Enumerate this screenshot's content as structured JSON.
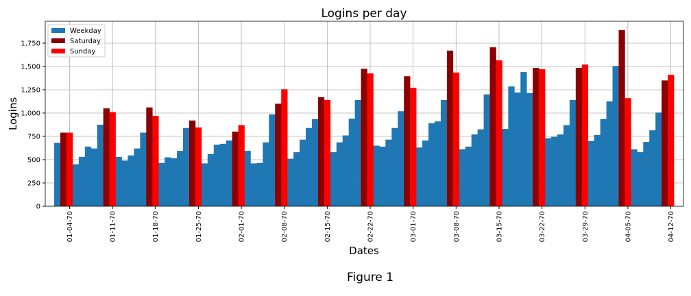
{
  "chart_data": {
    "type": "bar",
    "title": "Logins per day",
    "xlabel": "Dates",
    "ylabel": "Logins",
    "categories": [
      null,
      null,
      "01-04-70",
      null,
      null,
      null,
      null,
      null,
      null,
      "01-11-70",
      null,
      null,
      null,
      null,
      null,
      null,
      "01-18-70",
      null,
      null,
      null,
      null,
      null,
      null,
      "01-25-70",
      null,
      null,
      null,
      null,
      null,
      null,
      "02-01-70",
      null,
      null,
      null,
      null,
      null,
      null,
      "02-08-70",
      null,
      null,
      null,
      null,
      null,
      null,
      "02-15-70",
      null,
      null,
      null,
      null,
      null,
      null,
      "02-22-70",
      null,
      null,
      null,
      null,
      null,
      null,
      "03-01-70",
      null,
      null,
      null,
      null,
      null,
      null,
      "03-08-70",
      null,
      null,
      null,
      null,
      null,
      null,
      "03-15-70",
      null,
      null,
      null,
      null,
      null,
      null,
      "03-22-70",
      null,
      null,
      null,
      null,
      null,
      null,
      "03-29-70",
      null,
      null,
      null,
      null,
      null,
      null,
      "04-05-70",
      null,
      null,
      null,
      null,
      null,
      null,
      "04-12-70"
    ],
    "series": [
      {
        "name": "Weekday",
        "color": "#1f77b4",
        "values": [
          680,
          null,
          null,
          450,
          530,
          640,
          620,
          875,
          null,
          null,
          530,
          490,
          545,
          620,
          790,
          null,
          null,
          465,
          525,
          515,
          595,
          840,
          null,
          null,
          460,
          560,
          660,
          670,
          705,
          null,
          null,
          595,
          460,
          465,
          685,
          985,
          null,
          null,
          510,
          580,
          715,
          840,
          935,
          null,
          null,
          580,
          685,
          760,
          940,
          1140,
          null,
          null,
          650,
          640,
          715,
          840,
          1020,
          null,
          null,
          630,
          705,
          890,
          910,
          1140,
          null,
          null,
          610,
          640,
          770,
          825,
          1200,
          null,
          null,
          830,
          1285,
          1220,
          1440,
          1215,
          null,
          null,
          730,
          745,
          770,
          870,
          1140,
          null,
          null,
          700,
          765,
          935,
          1125,
          1505,
          null,
          null,
          610,
          580,
          690,
          815,
          1005,
          null,
          null
        ]
      },
      {
        "name": "Saturday",
        "color": "#8b0000",
        "values": [
          null,
          790,
          null,
          null,
          null,
          null,
          null,
          null,
          1050,
          null,
          null,
          null,
          null,
          null,
          null,
          1060,
          null,
          null,
          null,
          null,
          null,
          null,
          920,
          null,
          null,
          null,
          null,
          null,
          null,
          800,
          null,
          null,
          null,
          null,
          null,
          null,
          1100,
          null,
          null,
          null,
          null,
          null,
          null,
          1170,
          null,
          null,
          null,
          null,
          null,
          null,
          1475,
          null,
          null,
          null,
          null,
          null,
          null,
          1395,
          null,
          null,
          null,
          null,
          null,
          null,
          1670,
          null,
          null,
          null,
          null,
          null,
          null,
          1705,
          null,
          null,
          null,
          null,
          null,
          null,
          1485,
          null,
          null,
          null,
          null,
          null,
          null,
          1485,
          null,
          null,
          null,
          null,
          null,
          null,
          1890,
          null,
          null,
          null,
          null,
          null,
          null,
          1350,
          null
        ]
      },
      {
        "name": "Sunday",
        "color": "#ff0000",
        "values": [
          null,
          null,
          790,
          null,
          null,
          null,
          null,
          null,
          null,
          1010,
          null,
          null,
          null,
          null,
          null,
          null,
          970,
          null,
          null,
          null,
          null,
          null,
          null,
          845,
          null,
          null,
          null,
          null,
          null,
          null,
          870,
          null,
          null,
          null,
          null,
          null,
          null,
          1255,
          null,
          null,
          null,
          null,
          null,
          null,
          1140,
          null,
          null,
          null,
          null,
          null,
          null,
          1425,
          null,
          null,
          null,
          null,
          null,
          null,
          1270,
          null,
          null,
          null,
          null,
          null,
          null,
          1435,
          null,
          null,
          null,
          null,
          null,
          null,
          1565,
          null,
          null,
          null,
          null,
          null,
          null,
          1470,
          null,
          null,
          null,
          null,
          null,
          null,
          1520,
          null,
          null,
          null,
          null,
          null,
          null,
          1160,
          null,
          null,
          null,
          null,
          null,
          null,
          1410
        ]
      }
    ],
    "ylim": [
      0,
      1985
    ],
    "yticks": [
      0,
      250,
      500,
      750,
      {
        "value": 1000,
        "label": "1,000"
      },
      {
        "value": 1250,
        "label": "1,250"
      },
      {
        "value": 1500,
        "label": "1,500"
      },
      {
        "value": 1750,
        "label": "1,750"
      }
    ],
    "grid": true,
    "legend": "upper left"
  },
  "figure_caption": "Figure 1"
}
